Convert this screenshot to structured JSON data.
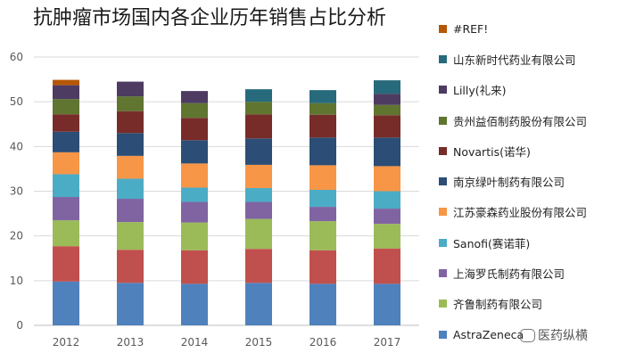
{
  "chart_data": {
    "type": "bar",
    "stacked": true,
    "title": "抗肿瘤市场国内各企业历年销售占比分析",
    "categories": [
      "2012",
      "2013",
      "2014",
      "2015",
      "2016",
      "2017"
    ],
    "ylim": [
      0,
      60
    ],
    "yticks": [
      "0",
      "10",
      "20",
      "30",
      "40",
      "50",
      "60"
    ],
    "grid": true,
    "legend_position": "right",
    "series": [
      {
        "name": "AstraZeneca",
        "color": "#4f81bd",
        "values": [
          9.8,
          9.5,
          9.3,
          9.5,
          9.3,
          9.3
        ]
      },
      {
        "name": "",
        "color": "#c0504d",
        "values": [
          7.9,
          7.4,
          7.5,
          7.6,
          7.5,
          7.9
        ]
      },
      {
        "name": "齐鲁制药有限公司",
        "color": "#9bbb59",
        "values": [
          5.8,
          6.2,
          6.2,
          6.7,
          6.5,
          5.5
        ]
      },
      {
        "name": "上海罗氏制药有限公司",
        "color": "#8064a2",
        "values": [
          5.2,
          5.2,
          4.6,
          3.8,
          3.2,
          3.4
        ]
      },
      {
        "name": "Sanofi(赛诺菲)",
        "color": "#4bacc6",
        "values": [
          5.1,
          4.5,
          3.2,
          3.1,
          3.8,
          3.9
        ]
      },
      {
        "name": "江苏豪森药业股份有限公司",
        "color": "#f79646",
        "values": [
          4.9,
          5.1,
          5.4,
          5.2,
          5.5,
          5.6
        ]
      },
      {
        "name": "南京绿叶制药有限公司",
        "color": "#2c4d75",
        "values": [
          4.6,
          5.1,
          5.2,
          5.9,
          6.2,
          6.4
        ]
      },
      {
        "name": "Novartis(诺华)",
        "color": "#772c2a",
        "values": [
          3.9,
          4.9,
          5.0,
          5.4,
          5.1,
          5.0
        ]
      },
      {
        "name": "贵州益佰制药股份有限公司",
        "color": "#5f7530",
        "values": [
          3.4,
          3.3,
          3.3,
          2.8,
          2.6,
          2.3
        ]
      },
      {
        "name": "Lilly(礼来)",
        "color": "#4d3b62",
        "values": [
          3.1,
          3.3,
          2.7,
          0,
          0,
          2.5
        ]
      },
      {
        "name": "山东新时代药业有限公司",
        "color": "#276a7c",
        "values": [
          0,
          0,
          0,
          2.8,
          2.9,
          3.0
        ]
      },
      {
        "name": "#REF!",
        "color": "#b65708",
        "values": [
          1.2,
          0,
          0,
          0,
          0,
          0
        ]
      }
    ]
  },
  "watermark": "医药纵横"
}
